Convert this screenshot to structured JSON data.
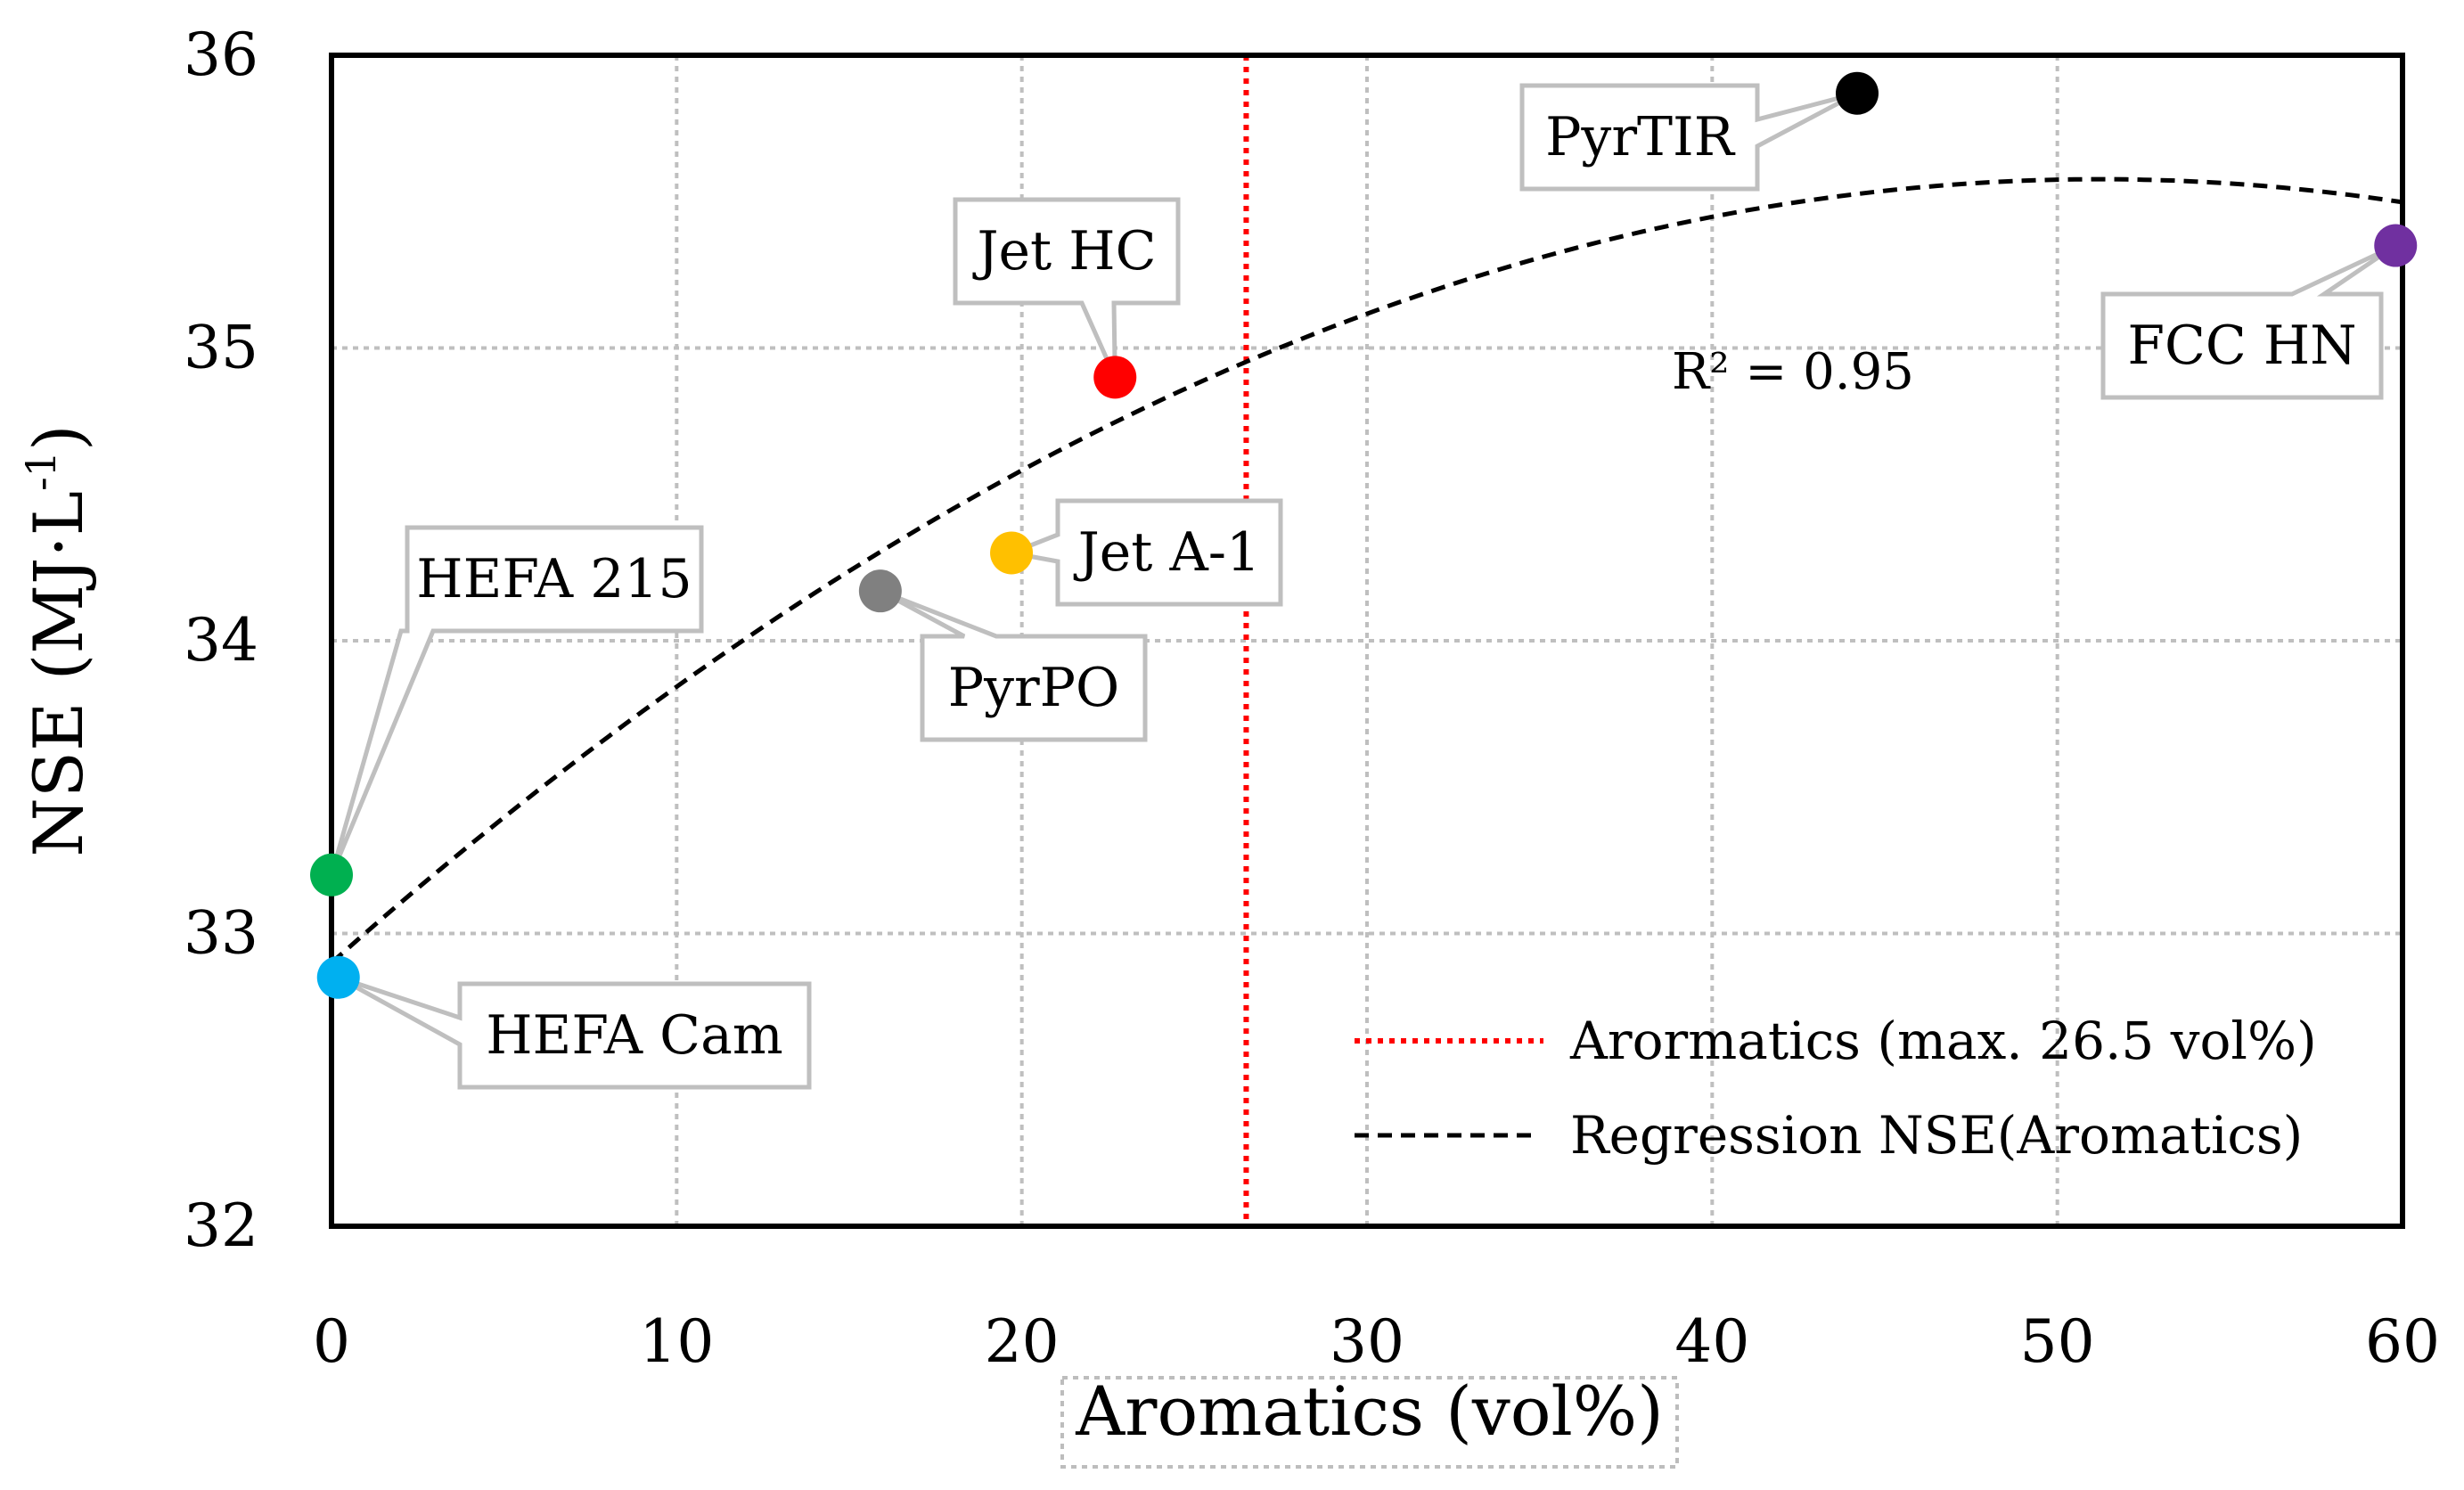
{
  "chart_data": {
    "type": "scatter",
    "title": "",
    "xlabel": "Aromatics (vol%)",
    "ylabel_main": "NSE (MJ·L",
    "ylabel_sup": "-1",
    "ylabel_close": ")",
    "xlim": [
      0,
      60
    ],
    "ylim": [
      32,
      36
    ],
    "x_ticks": [
      0,
      10,
      20,
      30,
      40,
      50,
      60
    ],
    "y_ticks": [
      32,
      33,
      34,
      35,
      36
    ],
    "grid": true,
    "points": [
      {
        "name": "HEFA 215",
        "x": 0.0,
        "y": 33.2,
        "color": "#00b050"
      },
      {
        "name": "HEFA Cam",
        "x": 0.2,
        "y": 32.85,
        "color": "#00b0f0"
      },
      {
        "name": "PyrPO",
        "x": 15.9,
        "y": 34.17,
        "color": "#808080"
      },
      {
        "name": "Jet A-1",
        "x": 19.7,
        "y": 34.3,
        "color": "#ffc000"
      },
      {
        "name": "Jet HC",
        "x": 22.7,
        "y": 34.9,
        "color": "#ff0000"
      },
      {
        "name": "PyrTIR",
        "x": 44.2,
        "y": 35.87,
        "color": "#000000"
      },
      {
        "name": "FCC HN",
        "x": 59.8,
        "y": 35.35,
        "color": "#7030a0"
      }
    ],
    "limit_line": {
      "x": 26.5,
      "label": "Arormatics (max. 26.5 vol%)",
      "color": "#ff0000"
    },
    "regression": {
      "label": "Regression NSE(Aromatics)",
      "r2_label": "R² = 0.95",
      "coefficients": {
        "a": -0.00102,
        "b": 0.1045,
        "c": 32.9
      },
      "x_range": [
        0,
        60
      ],
      "color": "#000000"
    },
    "legend_position": "bottom-right"
  }
}
